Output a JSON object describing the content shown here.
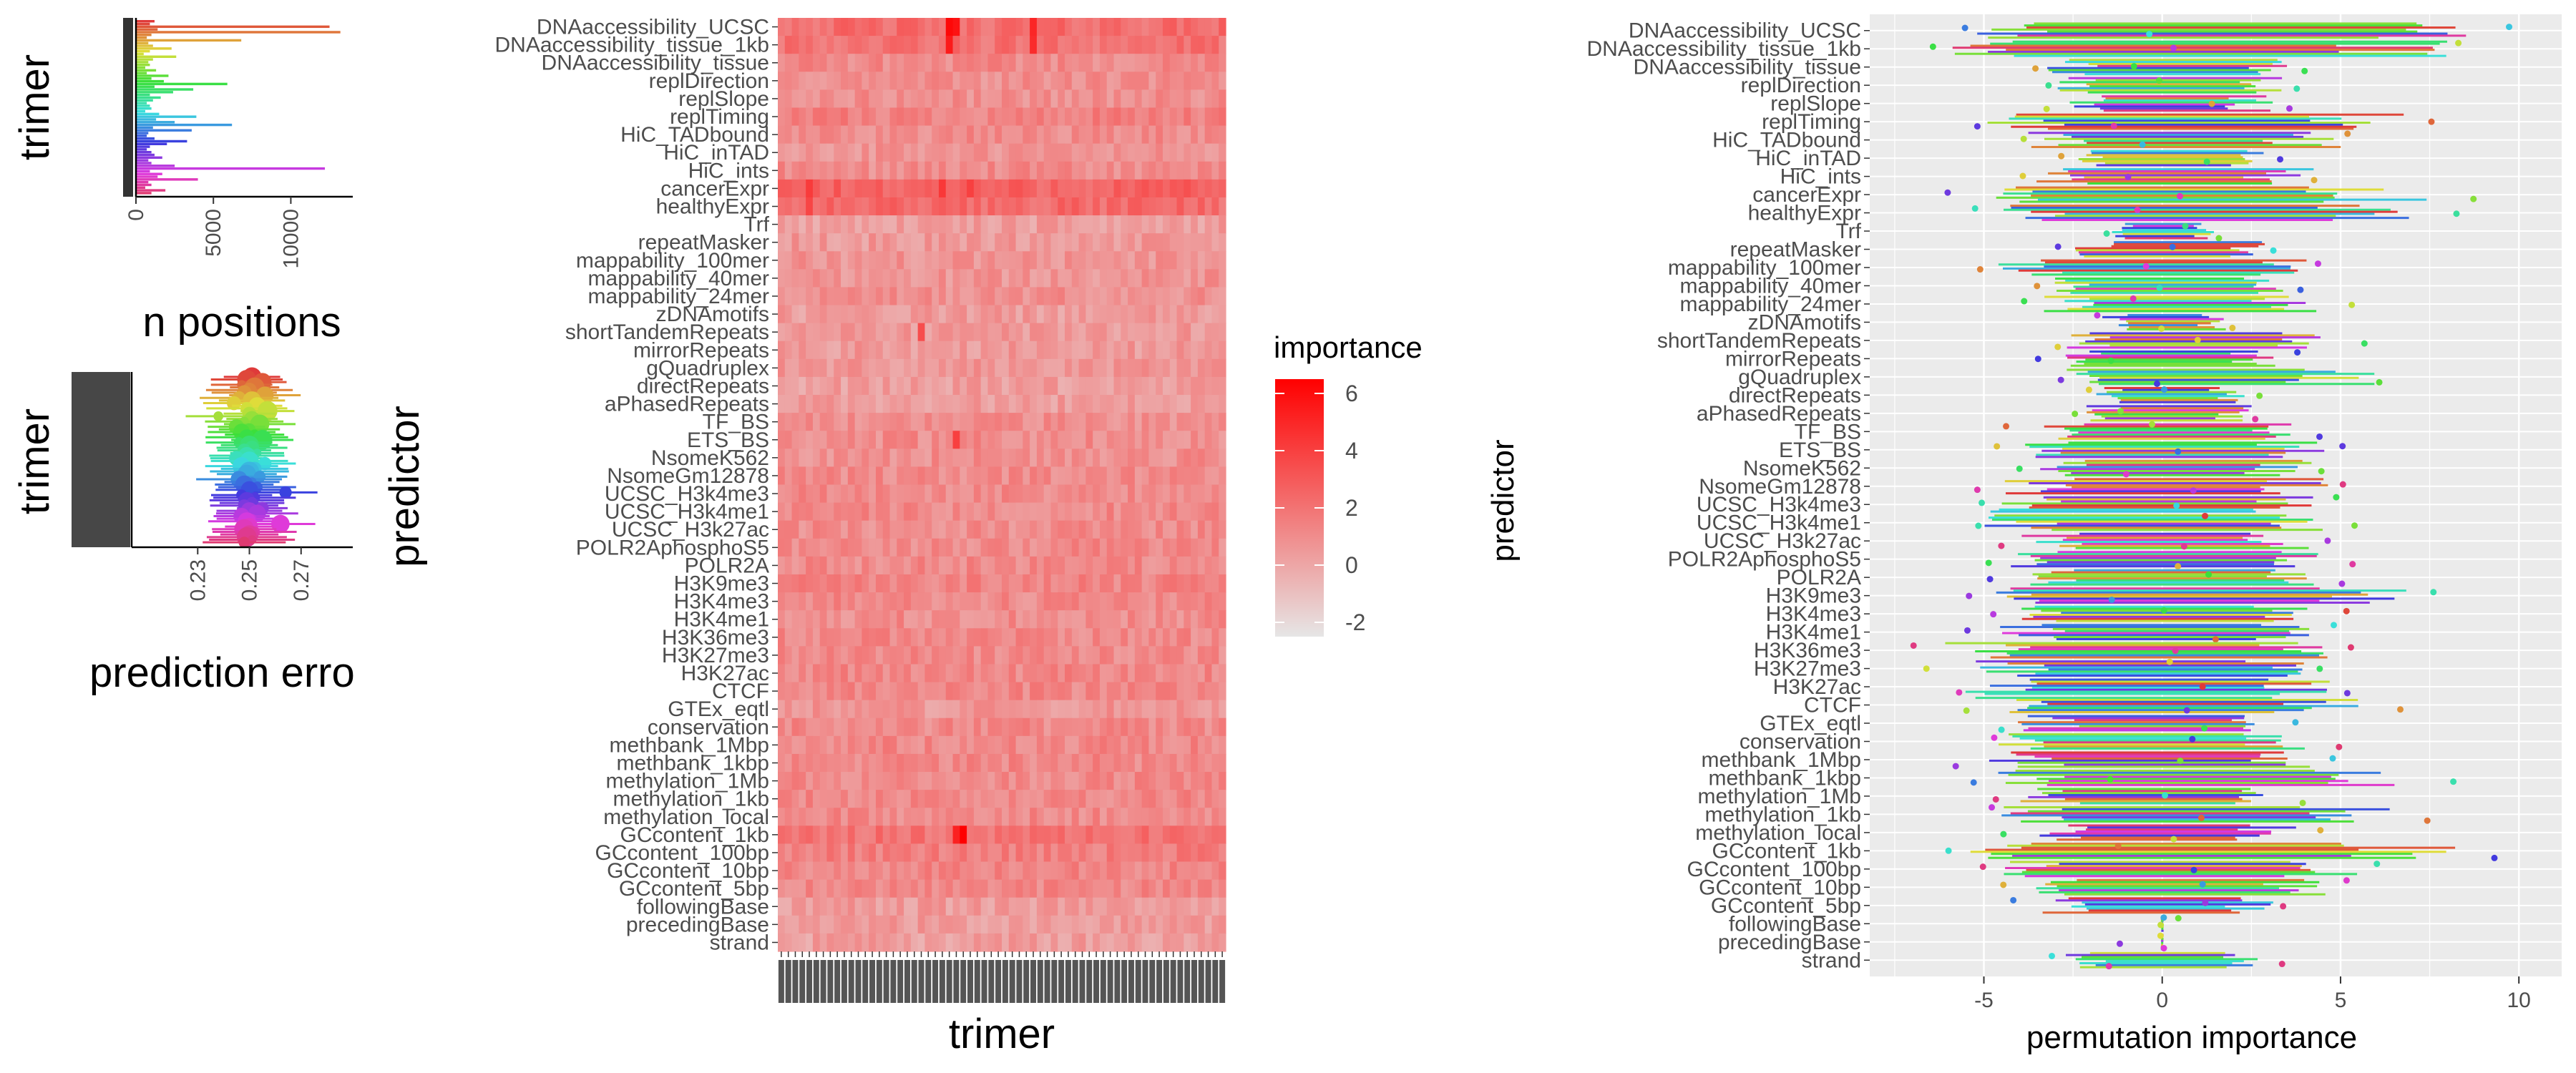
{
  "chart_data": [
    {
      "type": "bar",
      "panel": "counts",
      "ylabel": "trimer",
      "xlabel": "n positions",
      "xticks": [
        0,
        5000,
        10000
      ],
      "xlim": [
        0,
        14000
      ],
      "categories_note": "64 trimers (AAA..TTT), labels overlapping",
      "colors": "hue gradient by trimer",
      "values": [
        1200,
        900,
        12500,
        1400,
        13200,
        1000,
        700,
        6800,
        800,
        1100,
        2300,
        900,
        500,
        2600,
        1100,
        800,
        900,
        600,
        1300,
        700,
        2100,
        1000,
        1800,
        5900,
        1200,
        3700,
        2400,
        900,
        1600,
        1100,
        700,
        900,
        1000,
        600,
        1500,
        3900,
        1300,
        2500,
        6200,
        1100,
        3600,
        800,
        700,
        1200,
        3300,
        2000,
        900,
        700,
        1000,
        1200,
        1700,
        800,
        1000,
        2500,
        12200,
        900,
        1700,
        1400,
        4000,
        800,
        1000,
        600,
        1900,
        1000
      ]
    },
    {
      "type": "scatter",
      "panel": "prediction error",
      "ylabel": "trimer",
      "xlabel": "prediction erro",
      "xticks": [
        0.23,
        0.25,
        0.27
      ],
      "xlim": [
        0.205,
        0.29
      ],
      "colors": "hue gradient by trimer",
      "values": [
        0.251,
        0.249,
        0.255,
        0.247,
        0.252,
        0.25,
        0.248,
        0.256,
        0.246,
        0.251,
        0.244,
        0.253,
        0.249,
        0.257,
        0.25,
        0.238,
        0.251,
        0.248,
        0.254,
        0.245,
        0.25,
        0.247,
        0.252,
        0.249,
        0.255,
        0.246,
        0.25,
        0.251,
        0.248,
        0.253,
        0.249,
        0.245,
        0.25,
        0.256,
        0.247,
        0.252,
        0.25,
        0.249,
        0.254,
        0.246,
        0.251,
        0.248,
        0.253,
        0.25,
        0.264,
        0.247,
        0.252,
        0.249,
        0.251,
        0.248,
        0.255,
        0.25,
        0.253,
        0.247,
        0.251,
        0.249,
        0.262,
        0.25,
        0.248,
        0.252,
        0.25,
        0.249,
        0.251,
        0.248
      ]
    },
    {
      "type": "heatmap",
      "panel": "predictor x trimer",
      "ylabel": "predictor",
      "xlabel": "trimer",
      "predictors": [
        "DNAaccessibility_UCSC",
        "DNAaccessibility_tissue_1kb",
        "DNAaccessibility_tissue",
        "replDirection",
        "replSlope",
        "replTiming",
        "HiC_TADbound",
        "HiC_inTAD",
        "HiC_ints",
        "cancerExpr",
        "healthyExpr",
        "Trf",
        "repeatMasker",
        "mappability_100mer",
        "mappability_40mer",
        "mappability_24mer",
        "zDNAmotifs",
        "shortTandemRepeats",
        "mirrorRepeats",
        "gQuadruplex",
        "directRepeats",
        "aPhasedRepeats",
        "TF_BS",
        "ETS_BS",
        "NsomeK562",
        "NsomeGm12878",
        "UCSC_H3k4me3",
        "UCSC_H3k4me1",
        "UCSC_H3k27ac",
        "POLR2AphosphoS5",
        "POLR2A",
        "H3K9me3",
        "H3K4me3",
        "H3K4me1",
        "H3K36me3",
        "H3K27me3",
        "H3K27ac",
        "CTCF",
        "GTEx_eqtl",
        "conservation",
        "methbank_1Mbp",
        "methbank_1kbp",
        "methylation_1Mb",
        "methylation_1kb",
        "methylation_local",
        "GCcontent_1kb",
        "GCcontent_100bp",
        "GCcontent_10bp",
        "GCcontent_5bp",
        "followingBase",
        "precedingBase",
        "strand"
      ],
      "row_mean_importance": [
        2.2,
        2.0,
        1.1,
        0.9,
        0.9,
        1.4,
        1.0,
        0.7,
        1.0,
        2.6,
        2.3,
        0.3,
        0.5,
        0.7,
        0.7,
        0.8,
        0.4,
        0.5,
        0.5,
        0.6,
        0.3,
        0.4,
        0.9,
        1.0,
        0.9,
        1.0,
        1.1,
        1.1,
        1.0,
        1.1,
        1.1,
        1.3,
        1.1,
        1.0,
        1.1,
        1.1,
        1.2,
        1.2,
        0.6,
        1.1,
        1.2,
        1.2,
        1.1,
        1.2,
        1.1,
        2.0,
        1.6,
        1.3,
        1.2,
        0.4,
        0.4,
        0.3
      ],
      "n_trimers": 64,
      "hot_cells": [
        [
          0,
          24,
          6.2
        ],
        [
          0,
          25,
          5.8
        ],
        [
          0,
          36,
          5.0
        ],
        [
          1,
          24,
          5.5
        ],
        [
          1,
          36,
          4.8
        ],
        [
          9,
          4,
          4.2
        ],
        [
          9,
          23,
          4.3
        ],
        [
          9,
          27,
          4.0
        ],
        [
          10,
          4,
          3.8
        ],
        [
          45,
          26,
          6.5
        ],
        [
          45,
          25,
          5.2
        ],
        [
          23,
          25,
          4.0
        ],
        [
          17,
          20,
          3.5
        ]
      ],
      "legend": {
        "title": "importance",
        "ticks": [
          6,
          4,
          2,
          0,
          -2
        ],
        "range": [
          -2.5,
          6.5
        ],
        "colors": [
          "#e6e6e6",
          "#ff0000"
        ]
      }
    },
    {
      "type": "scatter",
      "panel": "permutation importance",
      "ylabel": "predictor",
      "xlabel": "permutation importance",
      "xticks": [
        -5,
        0,
        5,
        10
      ],
      "xlim": [
        -8.2,
        11.2
      ],
      "categories": [
        "DNAaccessibility_UCSC",
        "DNAaccessibility_tissue_1kb",
        "DNAaccessibility_tissue",
        "replDirection",
        "replSlope",
        "replTiming",
        "HiC_TADbound",
        "HiC_inTAD",
        "HiC_ints",
        "cancerExpr",
        "healthyExpr",
        "Trf",
        "repeatMasker",
        "mappability_100mer",
        "mappability_40mer",
        "mappability_24mer",
        "zDNAmotifs",
        "shortTandemRepeats",
        "mirrorRepeats",
        "gQuadruplex",
        "directRepeats",
        "aPhasedRepeats",
        "TF_BS",
        "ETS_BS",
        "NsomeK562",
        "NsomeGm12878",
        "UCSC_H3k4me3",
        "UCSC_H3k4me1",
        "UCSC_H3k27ac",
        "POLR2AphosphoS5",
        "POLR2A",
        "H3K9me3",
        "H3K4me3",
        "H3K4me1",
        "H3K36me3",
        "H3K27me3",
        "H3K27ac",
        "CTCF",
        "GTEx_eqtl",
        "conservation",
        "methbank_1Mbp",
        "methbank_1kbp",
        "methylation_1Mb",
        "methylation_1kb",
        "methylation_local",
        "GCcontent_1kb",
        "GCcontent_100bp",
        "GCcontent_10bp",
        "GCcontent_5bp",
        "followingBase",
        "precedingBase",
        "strand"
      ],
      "spread_low": [
        -6.5,
        -7.2,
        -4.0,
        -3.5,
        -3.5,
        -5.8,
        -4.5,
        -3.2,
        -4.5,
        -6.2,
        -5.8,
        -1.8,
        -3.0,
        -5.5,
        -4.0,
        -4.0,
        -2.0,
        -3.2,
        -3.5,
        -3.2,
        -2.2,
        -2.5,
        -4.5,
        -5.0,
        -4.5,
        -5.2,
        -5.8,
        -6.0,
        -5.0,
        -5.0,
        -5.0,
        -5.5,
        -5.5,
        -5.5,
        -7.8,
        -7.0,
        -6.5,
        -6.2,
        -4.8,
        -5.5,
        -6.0,
        -5.8,
        -5.0,
        -5.5,
        -4.5,
        -6.5,
        -5.5,
        -4.8,
        -4.2,
        -0.05,
        -0.05,
        -3.2
      ],
      "spread_high": [
        10.3,
        9.5,
        4.2,
        4.0,
        3.8,
        8.0,
        6.0,
        3.5,
        5.0,
        8.8,
        8.5,
        1.8,
        3.5,
        4.8,
        4.2,
        5.5,
        2.2,
        5.8,
        3.8,
        7.0,
        2.8,
        3.0,
        4.8,
        5.8,
        5.0,
        5.8,
        5.5,
        5.8,
        5.0,
        5.5,
        5.5,
        8.2,
        5.5,
        5.0,
        5.5,
        5.0,
        5.8,
        6.8,
        4.2,
        5.0,
        5.5,
        8.2,
        4.5,
        7.8,
        4.5,
        9.8,
        6.5,
        5.5,
        3.8,
        0.05,
        0.05,
        3.8
      ],
      "n_series": 64,
      "colors": "hue gradient by trimer"
    }
  ]
}
